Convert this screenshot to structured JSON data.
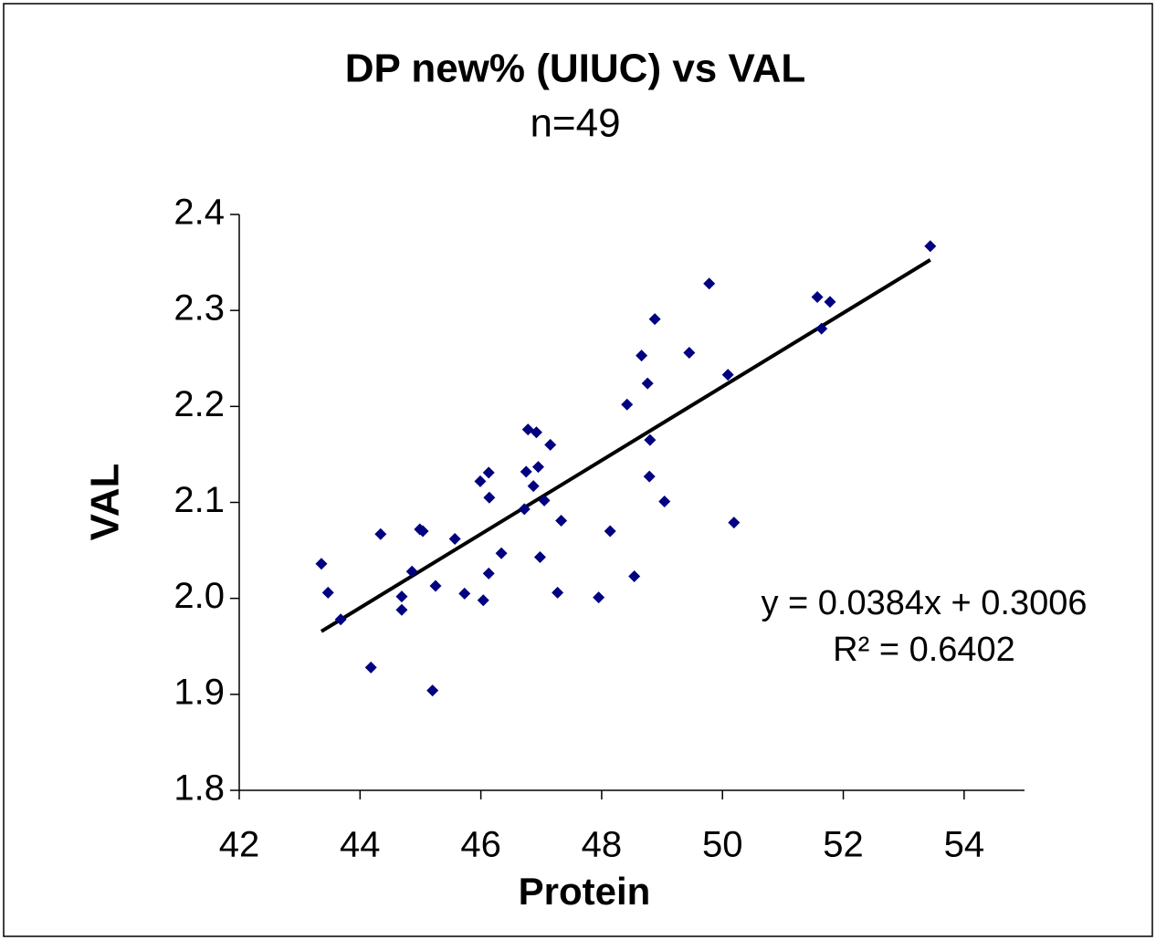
{
  "chart_data": {
    "type": "scatter",
    "title": "DP new% (UIUC) vs VAL",
    "subtitle": "n=49",
    "xlabel": "Protein",
    "ylabel": "VAL",
    "xlim": [
      42,
      55
    ],
    "xticks": [
      42,
      44,
      46,
      48,
      50,
      52,
      54
    ],
    "ylim": [
      1.8,
      2.4
    ],
    "yticks": [
      1.8,
      1.9,
      {
        "value": 2,
        "label": "2.0"
      },
      2.1,
      2.2,
      2.3,
      2.4
    ],
    "color": "#000080",
    "x": [
      43.36,
      43.47,
      43.68,
      44.18,
      44.34,
      44.69,
      44.69,
      44.86,
      44.99,
      45.04,
      45.2,
      45.25,
      45.57,
      45.73,
      45.99,
      46.04,
      46.13,
      46.13,
      46.14,
      46.34,
      46.72,
      46.75,
      46.78,
      46.87,
      46.92,
      46.95,
      46.98,
      47.05,
      47.15,
      47.27,
      47.33,
      47.95,
      48.14,
      48.42,
      48.54,
      48.66,
      48.76,
      48.79,
      48.8,
      48.88,
      49.04,
      49.45,
      49.78,
      50.09,
      50.19,
      51.57,
      51.64,
      51.78,
      53.44
    ],
    "values": [
      2.036,
      2.006,
      1.978,
      1.928,
      2.067,
      2.002,
      1.988,
      2.028,
      2.072,
      2.07,
      1.904,
      2.013,
      2.062,
      2.005,
      2.122,
      1.998,
      2.131,
      2.026,
      2.105,
      2.047,
      2.093,
      2.132,
      2.176,
      2.117,
      2.173,
      2.137,
      2.043,
      2.102,
      2.16,
      2.006,
      2.081,
      2.001,
      2.07,
      2.202,
      2.023,
      2.253,
      2.224,
      2.127,
      2.165,
      2.291,
      2.101,
      2.256,
      2.328,
      2.233,
      2.079,
      2.314,
      2.281,
      2.309,
      2.367
    ],
    "trendline": {
      "slope": 0.0384,
      "intercept": 0.3006,
      "x": [
        43.36,
        53.44
      ],
      "color": "#000000"
    },
    "annotations": [
      "y = 0.0384x  + 0.3006",
      "R² = 0.6402"
    ]
  }
}
